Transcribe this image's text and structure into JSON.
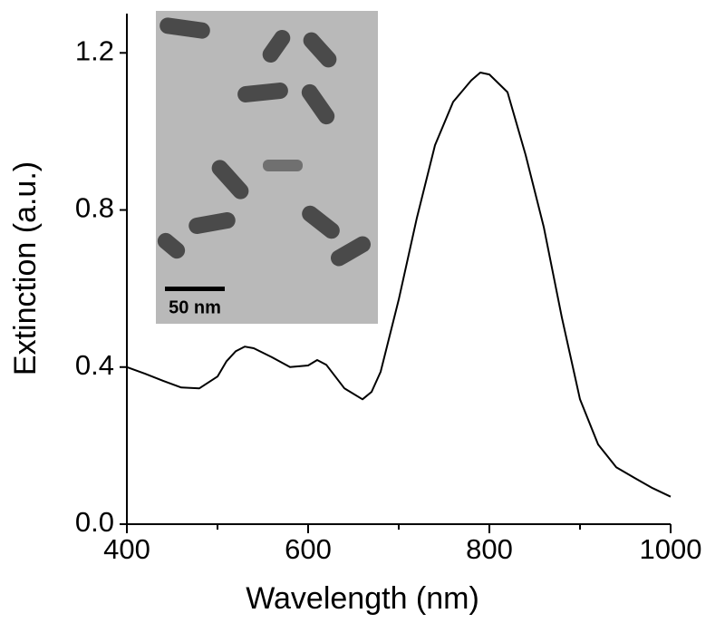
{
  "chart_data": {
    "type": "line",
    "xlabel": "Wavelength (nm)",
    "ylabel": "Extinction (a.u.)",
    "x": [
      400,
      420,
      440,
      460,
      480,
      500,
      510,
      520,
      530,
      540,
      560,
      580,
      600,
      610,
      620,
      640,
      660,
      670,
      680,
      700,
      720,
      740,
      760,
      780,
      790,
      800,
      820,
      840,
      860,
      880,
      900,
      920,
      940,
      960,
      980,
      1000
    ],
    "values": [
      0.4,
      0.383,
      0.365,
      0.348,
      0.346,
      0.376,
      0.415,
      0.44,
      0.452,
      0.448,
      0.425,
      0.4,
      0.404,
      0.418,
      0.406,
      0.346,
      0.318,
      0.337,
      0.388,
      0.572,
      0.78,
      0.965,
      1.075,
      1.13,
      1.15,
      1.145,
      1.1,
      0.94,
      0.757,
      0.526,
      0.318,
      0.203,
      0.145,
      0.118,
      0.092,
      0.07
    ],
    "color": "#000000",
    "xlim": [
      400,
      1000
    ],
    "xticks": [
      400,
      600,
      800,
      1000
    ],
    "xminorticks": [
      500,
      700,
      900
    ],
    "ylim": [
      0,
      1.3
    ],
    "yticks": [
      {
        "value": 0,
        "label": "0.0"
      },
      0.4,
      0.8,
      1.2
    ],
    "annotations": [
      "50 nm"
    ]
  }
}
